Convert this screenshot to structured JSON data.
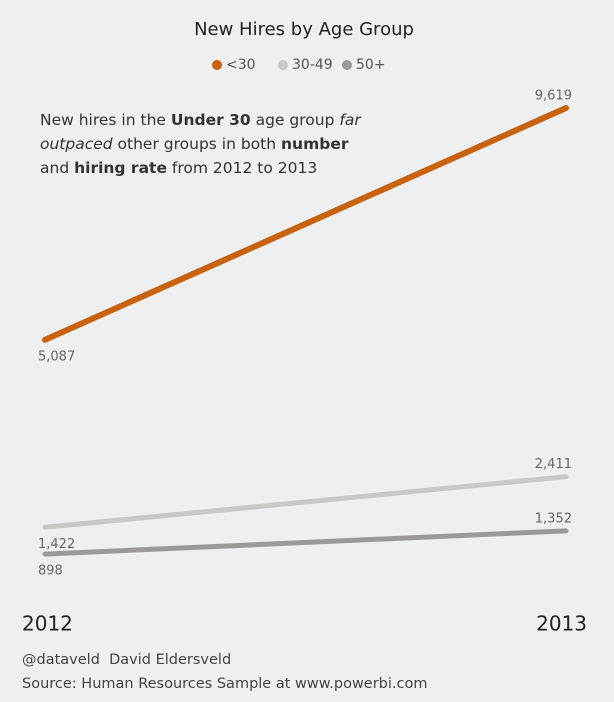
{
  "chart_data": {
    "type": "line",
    "title": "New Hires by Age Group",
    "categories": [
      "2012",
      "2013"
    ],
    "series": [
      {
        "name": "<30",
        "color": "#c8620e",
        "values": [
          5087,
          9619
        ],
        "value_labels": [
          "5,087",
          "9,619"
        ]
      },
      {
        "name": "30-49",
        "color": "#c8c8c8",
        "values": [
          1422,
          2411
        ],
        "value_labels": [
          "1,422",
          "2,411"
        ]
      },
      {
        "name": "50+",
        "color": "#9a9a9a",
        "values": [
          898,
          1352
        ],
        "value_labels": [
          "898",
          "1,352"
        ]
      }
    ],
    "annotation": [
      {
        "text": "New hires in the "
      },
      {
        "text": "Under 30",
        "bold": true
      },
      {
        "text": " age group "
      },
      {
        "text": "far outpaced",
        "italic": true
      },
      {
        "text": " other groups in both "
      },
      {
        "text": "number",
        "bold": true
      },
      {
        "text": " and "
      },
      {
        "text": "hiring rate",
        "bold": true
      },
      {
        "text": " from 2012 to 2013"
      }
    ],
    "footer": [
      "@dataveld  David Eldersveld",
      "Source: Human Resources Sample at www.powerbi.com"
    ]
  }
}
